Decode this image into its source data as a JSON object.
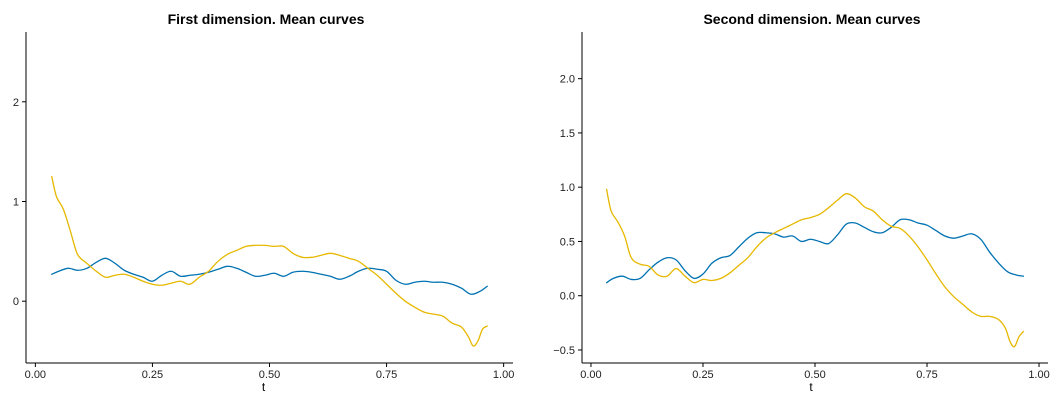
{
  "chart_data": [
    {
      "type": "line",
      "title": "First dimension. Mean curves",
      "xlabel": "t",
      "ylabel": "",
      "xlim": [
        -0.02,
        1.02
      ],
      "ylim": [
        -0.62,
        2.7
      ],
      "x_ticks": [
        0.0,
        0.25,
        0.5,
        0.75,
        1.0
      ],
      "x_tick_labels": [
        "0.00",
        "0.25",
        "0.50",
        "0.75",
        "1.00"
      ],
      "y_ticks": [
        0,
        1,
        2
      ],
      "y_tick_labels": [
        "0",
        "1",
        "2"
      ],
      "grid": false,
      "legend": "none",
      "series": [
        {
          "color": "#0072B2",
          "x": [
            0.035,
            0.05,
            0.07,
            0.09,
            0.11,
            0.13,
            0.15,
            0.17,
            0.19,
            0.21,
            0.23,
            0.25,
            0.27,
            0.29,
            0.31,
            0.33,
            0.35,
            0.37,
            0.39,
            0.41,
            0.43,
            0.45,
            0.47,
            0.49,
            0.51,
            0.53,
            0.55,
            0.57,
            0.59,
            0.61,
            0.63,
            0.65,
            0.67,
            0.69,
            0.71,
            0.73,
            0.75,
            0.77,
            0.79,
            0.81,
            0.83,
            0.85,
            0.87,
            0.89,
            0.91,
            0.93,
            0.95,
            0.965
          ],
          "y": [
            0.27,
            0.3,
            0.33,
            0.31,
            0.33,
            0.39,
            0.43,
            0.38,
            0.31,
            0.27,
            0.24,
            0.2,
            0.26,
            0.3,
            0.25,
            0.26,
            0.27,
            0.29,
            0.32,
            0.35,
            0.33,
            0.29,
            0.25,
            0.26,
            0.28,
            0.25,
            0.29,
            0.3,
            0.29,
            0.27,
            0.25,
            0.22,
            0.25,
            0.3,
            0.33,
            0.32,
            0.3,
            0.21,
            0.17,
            0.19,
            0.2,
            0.19,
            0.19,
            0.17,
            0.13,
            0.07,
            0.1,
            0.15
          ]
        },
        {
          "color": "#E6B800",
          "x": [
            0.035,
            0.045,
            0.06,
            0.075,
            0.09,
            0.11,
            0.13,
            0.15,
            0.17,
            0.19,
            0.21,
            0.23,
            0.25,
            0.27,
            0.29,
            0.31,
            0.33,
            0.35,
            0.37,
            0.39,
            0.41,
            0.43,
            0.45,
            0.47,
            0.49,
            0.51,
            0.53,
            0.55,
            0.57,
            0.59,
            0.61,
            0.63,
            0.65,
            0.67,
            0.69,
            0.71,
            0.73,
            0.75,
            0.77,
            0.79,
            0.81,
            0.83,
            0.85,
            0.87,
            0.89,
            0.91,
            0.925,
            0.935,
            0.945,
            0.955,
            0.965
          ],
          "y": [
            1.25,
            1.05,
            0.92,
            0.7,
            0.47,
            0.38,
            0.3,
            0.24,
            0.26,
            0.27,
            0.24,
            0.2,
            0.17,
            0.16,
            0.18,
            0.2,
            0.17,
            0.24,
            0.3,
            0.4,
            0.47,
            0.51,
            0.55,
            0.56,
            0.56,
            0.55,
            0.55,
            0.48,
            0.44,
            0.44,
            0.46,
            0.48,
            0.46,
            0.43,
            0.4,
            0.33,
            0.26,
            0.17,
            0.08,
            0.0,
            -0.06,
            -0.11,
            -0.13,
            -0.15,
            -0.22,
            -0.26,
            -0.36,
            -0.45,
            -0.4,
            -0.28,
            -0.25
          ]
        }
      ]
    },
    {
      "type": "line",
      "title": "Second dimension. Mean curves",
      "xlabel": "t",
      "ylabel": "",
      "xlim": [
        -0.02,
        1.02
      ],
      "ylim": [
        -0.62,
        2.43
      ],
      "x_ticks": [
        0.0,
        0.25,
        0.5,
        0.75,
        1.0
      ],
      "x_tick_labels": [
        "0.00",
        "0.25",
        "0.50",
        "0.75",
        "1.00"
      ],
      "y_ticks": [
        -0.5,
        0.0,
        0.5,
        1.0,
        1.5,
        2.0
      ],
      "y_tick_labels": [
        "−0.5",
        "0.0",
        "0.5",
        "1.0",
        "1.5",
        "2.0"
      ],
      "grid": false,
      "legend": "none",
      "series": [
        {
          "color": "#0072B2",
          "x": [
            0.035,
            0.05,
            0.07,
            0.09,
            0.11,
            0.13,
            0.15,
            0.17,
            0.19,
            0.21,
            0.23,
            0.25,
            0.27,
            0.29,
            0.31,
            0.33,
            0.35,
            0.37,
            0.39,
            0.41,
            0.43,
            0.45,
            0.47,
            0.49,
            0.51,
            0.53,
            0.55,
            0.57,
            0.59,
            0.61,
            0.63,
            0.65,
            0.67,
            0.69,
            0.71,
            0.73,
            0.75,
            0.77,
            0.79,
            0.81,
            0.83,
            0.85,
            0.87,
            0.89,
            0.91,
            0.93,
            0.95,
            0.965
          ],
          "y": [
            0.12,
            0.16,
            0.18,
            0.15,
            0.16,
            0.24,
            0.31,
            0.35,
            0.33,
            0.23,
            0.16,
            0.2,
            0.3,
            0.35,
            0.37,
            0.45,
            0.53,
            0.58,
            0.58,
            0.57,
            0.54,
            0.55,
            0.5,
            0.52,
            0.5,
            0.48,
            0.56,
            0.66,
            0.67,
            0.63,
            0.59,
            0.58,
            0.63,
            0.7,
            0.7,
            0.67,
            0.65,
            0.6,
            0.55,
            0.53,
            0.55,
            0.57,
            0.52,
            0.4,
            0.3,
            0.22,
            0.19,
            0.18
          ]
        },
        {
          "color": "#E6B800",
          "x": [
            0.035,
            0.045,
            0.06,
            0.075,
            0.09,
            0.11,
            0.13,
            0.15,
            0.17,
            0.19,
            0.21,
            0.23,
            0.25,
            0.27,
            0.29,
            0.31,
            0.33,
            0.35,
            0.37,
            0.39,
            0.41,
            0.43,
            0.45,
            0.47,
            0.49,
            0.51,
            0.53,
            0.55,
            0.57,
            0.59,
            0.61,
            0.63,
            0.65,
            0.67,
            0.69,
            0.71,
            0.73,
            0.75,
            0.77,
            0.79,
            0.81,
            0.83,
            0.85,
            0.87,
            0.89,
            0.91,
            0.925,
            0.935,
            0.945,
            0.955,
            0.965
          ],
          "y": [
            0.98,
            0.78,
            0.68,
            0.55,
            0.35,
            0.29,
            0.27,
            0.19,
            0.18,
            0.25,
            0.18,
            0.12,
            0.15,
            0.14,
            0.16,
            0.21,
            0.28,
            0.35,
            0.45,
            0.53,
            0.58,
            0.62,
            0.66,
            0.7,
            0.72,
            0.75,
            0.81,
            0.88,
            0.94,
            0.9,
            0.82,
            0.78,
            0.7,
            0.64,
            0.62,
            0.55,
            0.45,
            0.33,
            0.2,
            0.08,
            -0.01,
            -0.08,
            -0.15,
            -0.19,
            -0.19,
            -0.22,
            -0.3,
            -0.42,
            -0.47,
            -0.38,
            -0.33
          ]
        }
      ]
    }
  ]
}
